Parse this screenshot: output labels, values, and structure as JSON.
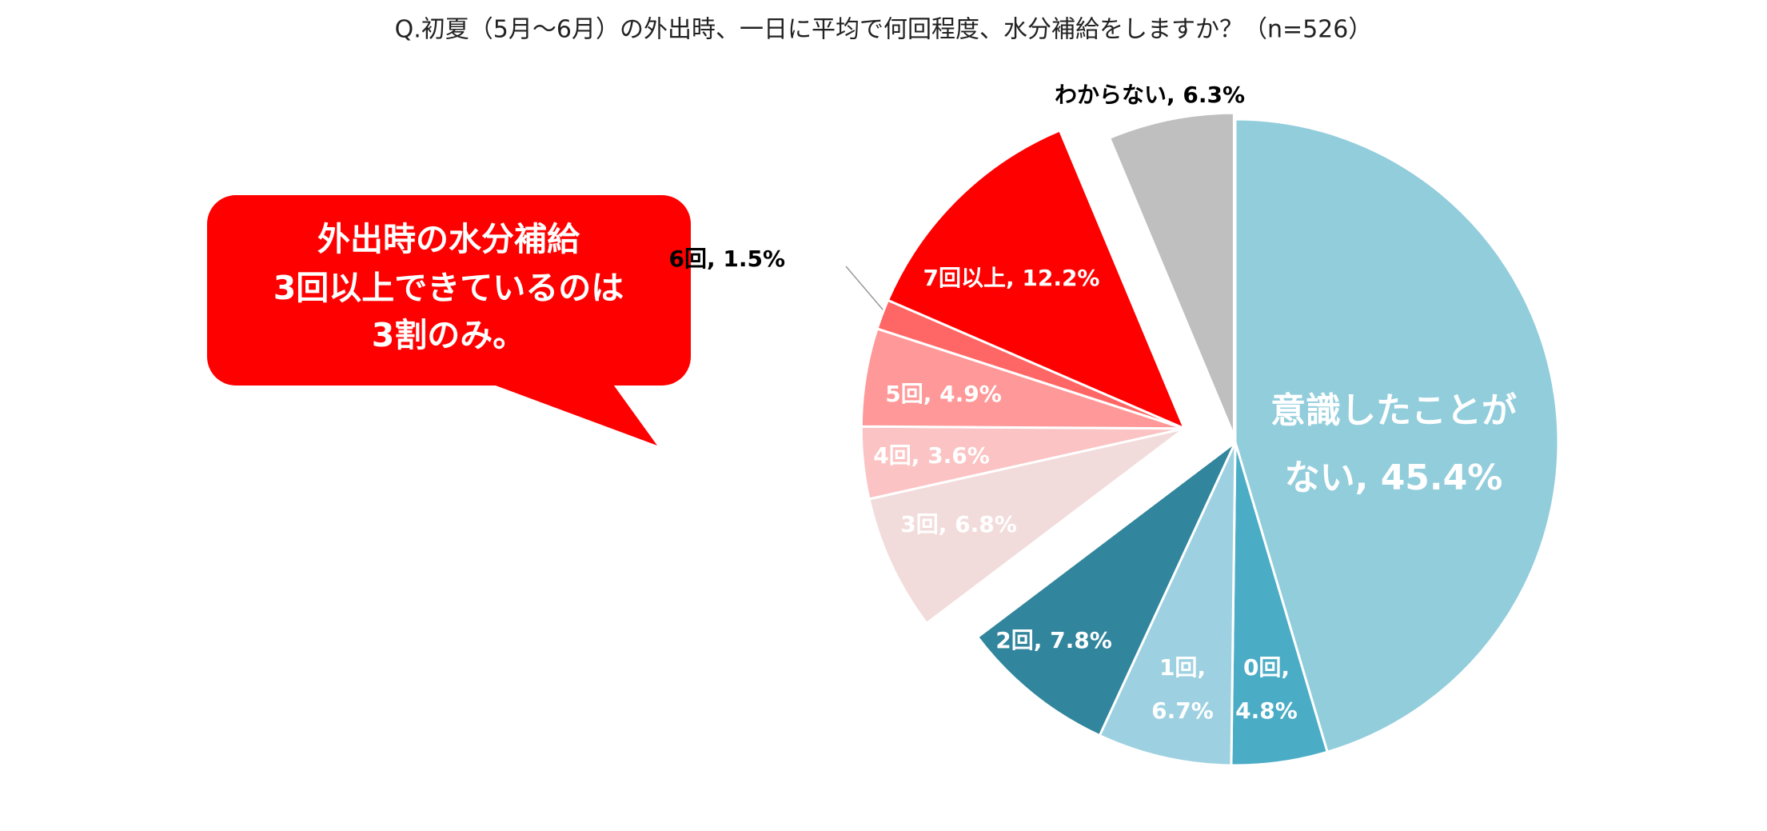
{
  "chart_data": {
    "type": "pie",
    "title": "Q.初夏（5月～6月）の外出時、一日に平均で何回程度、水分補給をしますか？（n=526）",
    "values": [
      45.4,
      4.8,
      6.7,
      7.8,
      6.8,
      3.6,
      4.9,
      1.5,
      12.2,
      6.3
    ],
    "value_labels": [
      "意識したことがない, 45.4%",
      "0回, 4.8%",
      "1回, 6.7%",
      "2回, 7.8%",
      "3回, 6.8%",
      "4回, 3.6%",
      "5回, 4.9%",
      "6回, 1.5%",
      "7回以上, 12.2%",
      "わからない, 6.3%"
    ],
    "colors": [
      "#92cddc",
      "#4bacc6",
      "#9dd1e1",
      "#31859c",
      "#f2dcdb",
      "#fbc3c3",
      "#ff9999",
      "#ff6666",
      "#ff0000",
      "#bfbfbf"
    ],
    "annotation": [
      "外出時の水分補給",
      "3回以上できているのは",
      "3割のみ。"
    ]
  }
}
